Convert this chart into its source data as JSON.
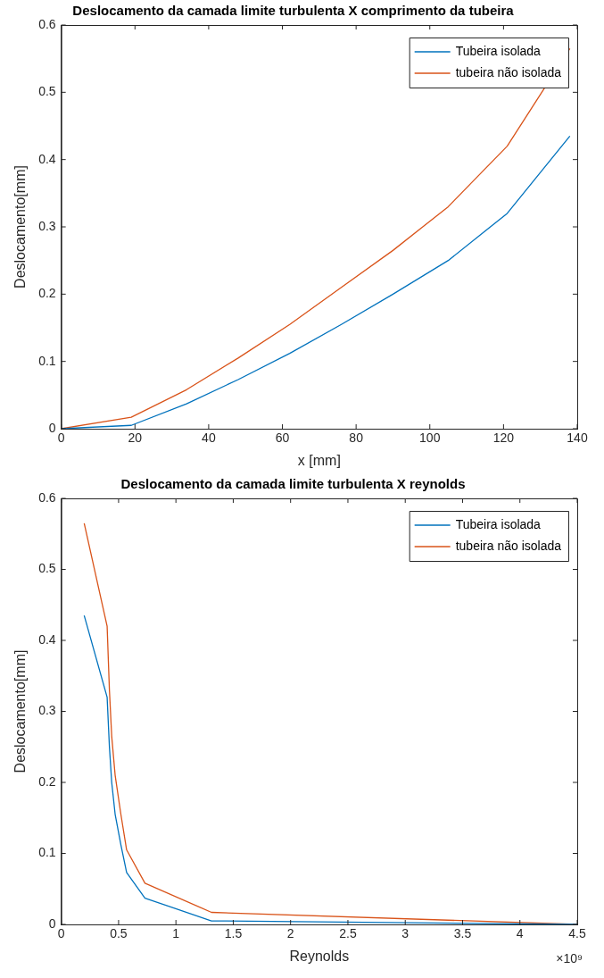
{
  "chart_data": [
    {
      "type": "line",
      "title": "Deslocamento da camada limite turbulenta X comprimento da tubeira",
      "xlabel": "x [mm]",
      "ylabel": "Deslocamento[mm]",
      "x": [
        0,
        19,
        34,
        48,
        62,
        76,
        90,
        105,
        121,
        138
      ],
      "series": [
        {
          "name": "Tubeira isolada",
          "color": "#0072bd",
          "values": [
            0,
            0.005,
            0.037,
            0.073,
            0.112,
            0.155,
            0.2,
            0.25,
            0.32,
            0.435
          ]
        },
        {
          "name": "tubeira não isolada",
          "color": "#d95319",
          "values": [
            0,
            0.017,
            0.058,
            0.105,
            0.155,
            0.21,
            0.265,
            0.33,
            0.42,
            0.565
          ]
        }
      ],
      "xlim": [
        0,
        140
      ],
      "xticks": [
        0,
        20,
        40,
        60,
        80,
        100,
        120,
        140
      ],
      "ylim": [
        0,
        0.6
      ],
      "yticks": [
        0,
        0.1,
        0.2,
        0.3,
        0.4,
        0.5,
        0.6
      ],
      "grid": false,
      "legend": "top right",
      "marker": "none",
      "line_style": "solid"
    },
    {
      "type": "line",
      "title": "Deslocamento da camada limite turbulenta X reynolds",
      "xlabel": "Reynolds",
      "ylabel": "Deslocamento[mm]",
      "annotations": [
        "×10⁹"
      ],
      "x": [
        0.2,
        0.4,
        0.42,
        0.44,
        0.47,
        0.52,
        0.57,
        0.73,
        1.31,
        4.5
      ],
      "series": [
        {
          "name": "Tubeira isolada",
          "color": "#0072bd",
          "values": [
            0.435,
            0.32,
            0.25,
            0.2,
            0.155,
            0.112,
            0.073,
            0.037,
            0.005,
            0
          ]
        },
        {
          "name": "tubeira não isolada",
          "color": "#d95319",
          "values": [
            0.565,
            0.42,
            0.33,
            0.265,
            0.21,
            0.155,
            0.105,
            0.058,
            0.017,
            0
          ]
        }
      ],
      "xlim": [
        0,
        4.5
      ],
      "xticks": [
        0,
        0.5,
        1,
        1.5,
        2,
        2.5,
        3,
        3.5,
        4,
        4.5
      ],
      "ylim": [
        0,
        0.6
      ],
      "yticks": [
        0,
        0.1,
        0.2,
        0.3,
        0.4,
        0.5,
        0.6
      ],
      "grid": false,
      "legend": "top right",
      "marker": "none",
      "line_style": "solid"
    }
  ]
}
